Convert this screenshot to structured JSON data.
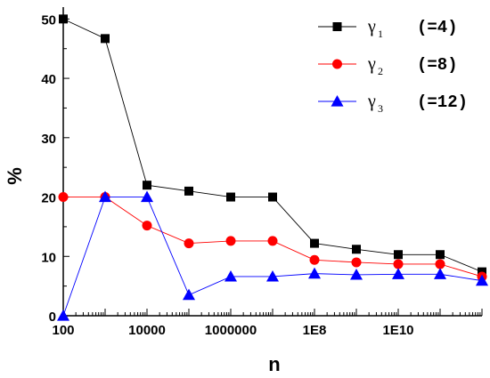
{
  "chart_data": {
    "type": "line",
    "xscale": "log",
    "xlim": [
      100,
      1000000000000.0
    ],
    "ylim": [
      0,
      52
    ],
    "xlabel": "n",
    "ylabel": "%",
    "x_tick_labels": [
      "100",
      "10000",
      "1000000",
      "1E8",
      "1E10"
    ],
    "y_tick_labels": [
      "0",
      "10",
      "20",
      "30",
      "40",
      "50"
    ],
    "y_ticks": [
      0,
      10,
      20,
      30,
      40,
      50
    ],
    "legend_position": "top-right",
    "grid": false,
    "series": [
      {
        "symbol": "γ",
        "subscript": "1",
        "value_label": "(=4)",
        "color": "#000000",
        "marker": "square",
        "x": [
          100,
          1000,
          10000,
          100000,
          1000000,
          10000000,
          100000000,
          1000000000,
          10000000000,
          100000000000,
          1000000000000
        ],
        "y": [
          50.0,
          46.7,
          22.0,
          21.0,
          20.0,
          20.0,
          12.2,
          11.2,
          10.3,
          10.3,
          7.4
        ]
      },
      {
        "symbol": "γ",
        "subscript": "2",
        "value_label": "(=8)",
        "color": "#ff0000",
        "marker": "circle",
        "x": [
          100,
          1000,
          10000,
          100000,
          1000000,
          10000000,
          100000000,
          1000000000,
          10000000000,
          100000000000,
          1000000000000
        ],
        "y": [
          20.0,
          20.0,
          15.2,
          12.2,
          12.6,
          12.6,
          9.4,
          9.0,
          8.7,
          8.7,
          6.6
        ]
      },
      {
        "symbol": "γ",
        "subscript": "3",
        "value_label": "(=12)",
        "color": "#0000ff",
        "marker": "triangle",
        "x": [
          100,
          1000,
          10000,
          100000,
          1000000,
          10000000,
          100000000,
          1000000000,
          10000000000,
          100000000000,
          1000000000000
        ],
        "y": [
          0.0,
          20.0,
          20.0,
          3.5,
          6.6,
          6.6,
          7.1,
          6.9,
          7.0,
          7.0,
          5.9
        ]
      }
    ]
  }
}
